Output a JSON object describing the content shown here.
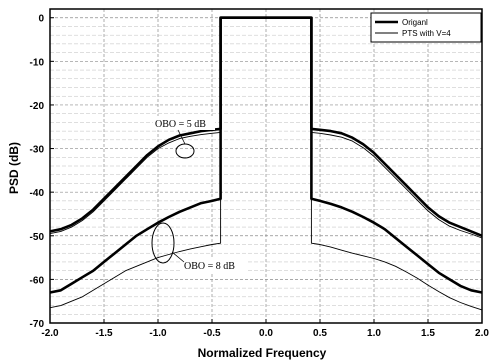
{
  "chart_data": {
    "type": "line",
    "title": "",
    "xlabel": "Normalized Frequency",
    "ylabel": "PSD (dB)",
    "xlim": [
      -2.0,
      2.0
    ],
    "ylim": [
      -70,
      2
    ],
    "xticks": [
      -2.0,
      -1.5,
      -1.0,
      -0.5,
      0.0,
      0.5,
      1.0,
      1.5,
      2.0
    ],
    "xtick_labels": [
      "-2.0",
      "-1.5",
      "-1.0",
      "-0.5",
      "0.0",
      "0.5",
      "1.0",
      "1.5",
      "2.0"
    ],
    "yticks": [
      0,
      -10,
      -20,
      -30,
      -40,
      -50,
      -60,
      -70
    ],
    "ytick_labels": [
      "0",
      "-10",
      "-20",
      "-30",
      "-40",
      "-50",
      "-60",
      "-70"
    ],
    "grid": true,
    "legend": {
      "position": "top-right",
      "entries": [
        {
          "label": "Origanl",
          "style": "thick"
        },
        {
          "label": "PTS with V=4",
          "style": "thin"
        }
      ]
    },
    "annotations": [
      {
        "text": "OBO = 5 dB"
      },
      {
        "text": "OBO = 8 dB"
      }
    ],
    "series": [
      {
        "name": "Origanl",
        "group": "OBO = 5 dB",
        "style": "thick",
        "x": [
          -2.0,
          -1.9,
          -1.8,
          -1.7,
          -1.6,
          -1.5,
          -1.4,
          -1.3,
          -1.2,
          -1.1,
          -1.0,
          -0.9,
          -0.8,
          -0.7,
          -0.6,
          -0.5,
          -0.42,
          -0.42,
          0.42,
          0.42,
          0.5,
          0.6,
          0.7,
          0.8,
          0.9,
          1.0,
          1.1,
          1.2,
          1.3,
          1.4,
          1.5,
          1.6,
          1.7,
          1.8,
          1.9,
          2.0
        ],
        "y": [
          -49,
          -48.5,
          -47.5,
          -46,
          -44,
          -41.5,
          -39,
          -36.5,
          -34,
          -31.5,
          -29.5,
          -28,
          -27,
          -26.5,
          -26,
          -25.7,
          -25.5,
          0,
          0,
          -25.5,
          -25.7,
          -26,
          -26.5,
          -27.5,
          -29,
          -31,
          -33.5,
          -36,
          -38.5,
          -41,
          -43.5,
          -45.5,
          -47,
          -48,
          -49,
          -50
        ]
      },
      {
        "name": "PTS with V=4",
        "group": "OBO = 5 dB",
        "style": "thin",
        "x": [
          -2.0,
          -1.9,
          -1.8,
          -1.7,
          -1.6,
          -1.5,
          -1.4,
          -1.3,
          -1.2,
          -1.1,
          -1.0,
          -0.9,
          -0.8,
          -0.7,
          -0.6,
          -0.5,
          -0.42,
          -0.42,
          0.42,
          0.42,
          0.5,
          0.6,
          0.7,
          0.8,
          0.9,
          1.0,
          1.1,
          1.2,
          1.3,
          1.4,
          1.5,
          1.6,
          1.7,
          1.8,
          1.9,
          2.0
        ],
        "y": [
          -49.5,
          -49,
          -48,
          -46.5,
          -44.5,
          -42,
          -39.5,
          -37,
          -34.5,
          -32,
          -30,
          -28.7,
          -27.7,
          -27.2,
          -26.8,
          -26.5,
          -26.3,
          0,
          0,
          -26.3,
          -26.5,
          -26.9,
          -27.4,
          -28.3,
          -29.8,
          -31.8,
          -34.3,
          -36.8,
          -39.3,
          -41.8,
          -44.3,
          -46.3,
          -47.8,
          -48.8,
          -49.6,
          -50.5
        ]
      },
      {
        "name": "Origanl",
        "group": "OBO = 8 dB",
        "style": "thick",
        "x": [
          -2.0,
          -1.9,
          -1.8,
          -1.7,
          -1.6,
          -1.5,
          -1.4,
          -1.3,
          -1.2,
          -1.1,
          -1.0,
          -0.9,
          -0.8,
          -0.7,
          -0.6,
          -0.5,
          -0.42,
          -0.42,
          0.42,
          0.42,
          0.5,
          0.6,
          0.7,
          0.8,
          0.9,
          1.0,
          1.1,
          1.2,
          1.3,
          1.4,
          1.5,
          1.6,
          1.7,
          1.8,
          1.9,
          2.0
        ],
        "y": [
          -63,
          -62.5,
          -61,
          -59.5,
          -58,
          -56,
          -54,
          -52,
          -50,
          -48.5,
          -47,
          -45.7,
          -44.5,
          -43.5,
          -42.5,
          -42,
          -41.5,
          0,
          0,
          -41.5,
          -42,
          -42.7,
          -43.5,
          -44.5,
          -45.7,
          -47,
          -48.5,
          -50.5,
          -52.5,
          -54.5,
          -56.5,
          -58.5,
          -60,
          -61.5,
          -62.5,
          -63
        ]
      },
      {
        "name": "PTS with V=4",
        "group": "OBO = 8 dB",
        "style": "thin",
        "x": [
          -2.0,
          -1.9,
          -1.8,
          -1.7,
          -1.6,
          -1.5,
          -1.4,
          -1.3,
          -1.2,
          -1.1,
          -1.0,
          -0.9,
          -0.8,
          -0.7,
          -0.6,
          -0.5,
          -0.42,
          -0.42,
          0.42,
          0.42,
          0.5,
          0.6,
          0.7,
          0.8,
          0.9,
          1.0,
          1.1,
          1.2,
          1.3,
          1.4,
          1.5,
          1.6,
          1.7,
          1.8,
          1.9,
          2.0
        ],
        "y": [
          -66.5,
          -66,
          -65,
          -64,
          -62.5,
          -61,
          -59.5,
          -58,
          -57,
          -56,
          -55,
          -54.3,
          -53.6,
          -53,
          -52.5,
          -52,
          -51.7,
          0,
          0,
          -51.7,
          -52,
          -52.6,
          -53.3,
          -54,
          -54.6,
          -55.2,
          -56,
          -57,
          -58.3,
          -59.7,
          -61.3,
          -62.8,
          -64.2,
          -65.3,
          -66.2,
          -67
        ]
      }
    ]
  }
}
